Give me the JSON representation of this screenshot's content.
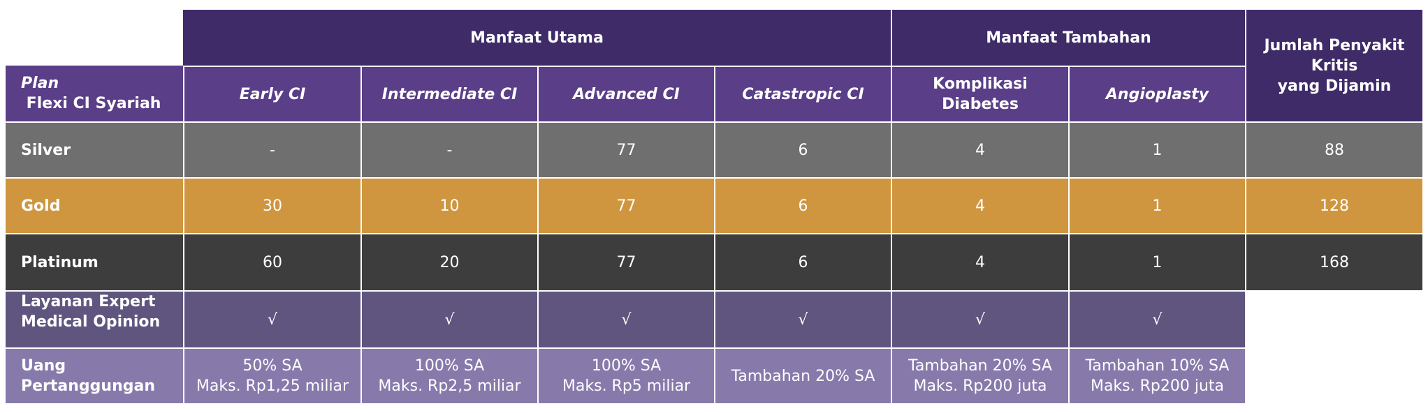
{
  "header": {
    "group_main": "Manfaat Utama",
    "group_extra": "Manfaat Tambahan",
    "total_line1": "Jumlah Penyakit Kritis",
    "total_line2": "yang Dijamin"
  },
  "columns": {
    "plan_prefix": "Plan",
    "plan_rest": " Flexi CI Syariah",
    "c1": "Early CI",
    "c2": "Intermediate CI",
    "c3": "Advanced CI",
    "c4": "Catastropic CI",
    "c5": "Komplikasi Diabetes",
    "c6": "Angioplasty"
  },
  "rows": {
    "silver": {
      "label": "Silver",
      "v1": "-",
      "v2": "-",
      "v3": "77",
      "v4": "6",
      "v5": "4",
      "v6": "1",
      "total": "88"
    },
    "gold": {
      "label": "Gold",
      "v1": "30",
      "v2": "10",
      "v3": "77",
      "v4": "6",
      "v5": "4",
      "v6": "1",
      "total": "128"
    },
    "platinum": {
      "label": "Platinum",
      "v1": "60",
      "v2": "20",
      "v3": "77",
      "v4": "6",
      "v5": "4",
      "v6": "1",
      "total": "168"
    }
  },
  "medical": {
    "label_line1": "Layanan Expert",
    "label_line2": "Medical Opinion",
    "v1": "√",
    "v2": "√",
    "v3": "√",
    "v4": "√",
    "v5": "√",
    "v6": "√"
  },
  "sum_assured": {
    "label": "Uang Pertanggungan",
    "v1_l1": "50% SA",
    "v1_l2": "Maks. Rp1,25 miliar",
    "v2_l1": "100% SA",
    "v2_l2": "Maks. Rp2,5 miliar",
    "v3_l1": "100% SA",
    "v3_l2": "Maks. Rp5 miliar",
    "v4": "Tambahan 20% SA",
    "v5_l1": "Tambahan 20% SA",
    "v5_l2": "Maks. Rp200 juta",
    "v6_l1": "Tambahan 10% SA",
    "v6_l2": "Maks. Rp200 juta"
  },
  "colors": {
    "header": "#3e2b68",
    "subheader": "#5a3e88",
    "silver": "#6f6f6f",
    "gold": "#cf963f",
    "platinum": "#3d3d3d",
    "medical": "#5f557f",
    "sum_assured": "#877aab"
  }
}
